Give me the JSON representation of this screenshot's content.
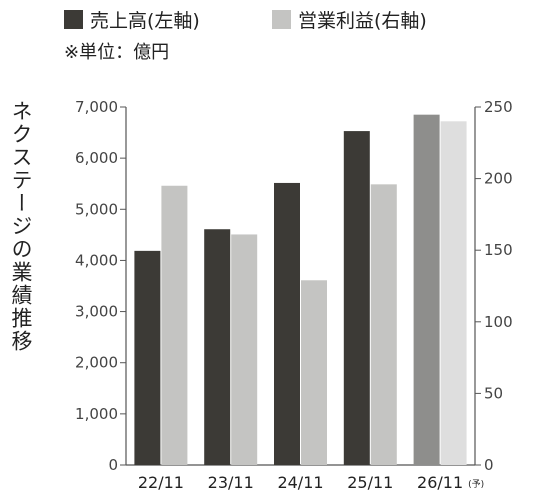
{
  "chart_data": {
    "type": "bar",
    "title": "ネクステージの業績推移",
    "unit_note": "※単位：億円",
    "categories": [
      "22/11",
      "23/11",
      "24/11",
      "25/11",
      "26/11"
    ],
    "category_note": "(予)",
    "series": [
      {
        "name": "売上高(左軸)",
        "axis": "left",
        "values": [
          4187,
          4610,
          5515,
          6529,
          6850
        ]
      },
      {
        "name": "営業利益(右軸)",
        "axis": "right",
        "values": [
          195,
          161,
          129,
          196,
          240
        ]
      }
    ],
    "left_axis": {
      "ylim": [
        0,
        7000
      ],
      "ticks": [
        "0",
        "1,000",
        "2,000",
        "3,000",
        "4,000",
        "5,000",
        "6,000",
        "7,000"
      ]
    },
    "right_axis": {
      "ylim": [
        0,
        250
      ],
      "ticks": [
        "0",
        "50",
        "100",
        "150",
        "200",
        "250"
      ]
    },
    "forecast_index": 4,
    "colors": {
      "sales": "#3c3a36",
      "profit": "#c4c4c2",
      "sales_forecast": "#8e8e8c",
      "profit_forecast": "#dedede",
      "axis": "#555555"
    },
    "grid": false,
    "legend_position": "top-left"
  }
}
